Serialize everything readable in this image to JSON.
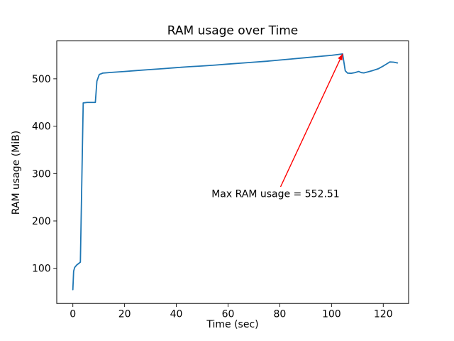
{
  "chart_data": {
    "type": "line",
    "title": "RAM usage over Time",
    "xlabel": "Time (sec)",
    "ylabel": "RAM usage (MiB)",
    "x": [
      0,
      0.3,
      0.7,
      1.5,
      2.9,
      4.0,
      5.5,
      7.0,
      8.7,
      9.3,
      10.2,
      11.6,
      15,
      20,
      25,
      30,
      35,
      40,
      45,
      50,
      55,
      60,
      65,
      70,
      75,
      80,
      85,
      90,
      95,
      100,
      103,
      104.3,
      105.3,
      106.2,
      107.5,
      109,
      110.5,
      111.5,
      112.5,
      114,
      116,
      118,
      120,
      121.5,
      122.5,
      124,
      125.5
    ],
    "y": [
      55,
      94,
      102,
      107,
      113,
      449,
      450,
      450,
      450,
      495,
      509,
      512,
      513.5,
      515.5,
      517.5,
      519.5,
      521.5,
      523.5,
      525.5,
      527,
      529,
      531,
      533,
      535,
      537,
      539.5,
      542,
      544.5,
      547,
      549.5,
      551.5,
      552.51,
      517,
      512,
      511.5,
      513,
      515.5,
      513,
      512.5,
      514.5,
      517.5,
      521,
      527,
      532,
      535.5,
      535,
      533.5
    ],
    "max_value": 552.51,
    "xticks": [
      0,
      20,
      40,
      60,
      80,
      100,
      120
    ],
    "yticks": [
      100,
      200,
      300,
      400,
      500
    ],
    "xlim": [
      -6.23,
      129.8
    ],
    "ylim": [
      25.8,
      579.9
    ],
    "grid": false,
    "legend": null,
    "line_color": "#1f77b4",
    "annotation": {
      "text": "Max RAM usage = 552.51",
      "color": "#ff0000",
      "xy": [
        104.3,
        552.51
      ],
      "text_xy": [
        53.6,
        250
      ],
      "arrow_start_xy": [
        80.3,
        272
      ]
    }
  }
}
